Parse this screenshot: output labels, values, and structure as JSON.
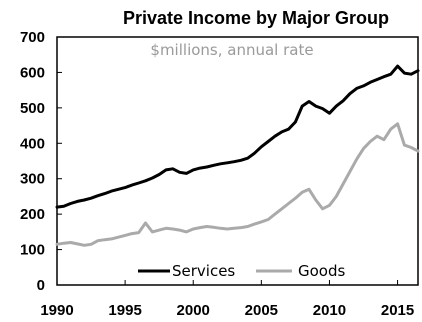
{
  "chart_data": {
    "type": "line",
    "title": "Private Income by Major Group",
    "subtitle": "$millions, annual rate",
    "xlim": [
      1990,
      2016.5
    ],
    "ylim": [
      0,
      700
    ],
    "x_ticks": [
      "1990",
      "1995",
      "2000",
      "2005",
      "2010",
      "2015"
    ],
    "y_ticks": [
      "0",
      "100",
      "200",
      "300",
      "400",
      "500",
      "600",
      "700"
    ],
    "grid": false,
    "legend_position": "bottom",
    "x": [
      1990.0,
      1990.5,
      1991.0,
      1991.5,
      1992.0,
      1992.5,
      1993.0,
      1993.5,
      1994.0,
      1994.5,
      1995.0,
      1995.5,
      1996.0,
      1996.5,
      1997.0,
      1997.5,
      1998.0,
      1998.5,
      1999.0,
      1999.5,
      2000.0,
      2000.5,
      2001.0,
      2001.5,
      2002.0,
      2002.5,
      2003.0,
      2003.5,
      2004.0,
      2004.5,
      2005.0,
      2005.5,
      2006.0,
      2006.5,
      2007.0,
      2007.5,
      2008.0,
      2008.5,
      2009.0,
      2009.5,
      2010.0,
      2010.5,
      2011.0,
      2011.5,
      2012.0,
      2012.5,
      2013.0,
      2013.5,
      2014.0,
      2014.5,
      2015.0,
      2015.5,
      2016.0,
      2016.5
    ],
    "series": [
      {
        "name": "Services",
        "color": "#000000",
        "values": [
          220,
          222,
          230,
          236,
          240,
          245,
          252,
          258,
          265,
          270,
          275,
          282,
          288,
          294,
          302,
          312,
          325,
          328,
          318,
          315,
          325,
          330,
          333,
          338,
          342,
          345,
          348,
          352,
          358,
          372,
          390,
          405,
          420,
          432,
          440,
          460,
          505,
          518,
          505,
          498,
          485,
          505,
          520,
          540,
          555,
          562,
          572,
          580,
          588,
          595,
          618,
          598,
          595,
          605
        ]
      },
      {
        "name": "Goods",
        "color": "#aaaaaa",
        "values": [
          115,
          118,
          120,
          116,
          112,
          115,
          125,
          128,
          130,
          135,
          140,
          145,
          148,
          175,
          150,
          155,
          160,
          158,
          155,
          150,
          158,
          162,
          165,
          163,
          160,
          158,
          160,
          162,
          165,
          172,
          178,
          185,
          200,
          215,
          230,
          245,
          262,
          270,
          240,
          215,
          225,
          250,
          285,
          320,
          355,
          385,
          405,
          420,
          410,
          440,
          455,
          395,
          388,
          378
        ]
      }
    ]
  }
}
